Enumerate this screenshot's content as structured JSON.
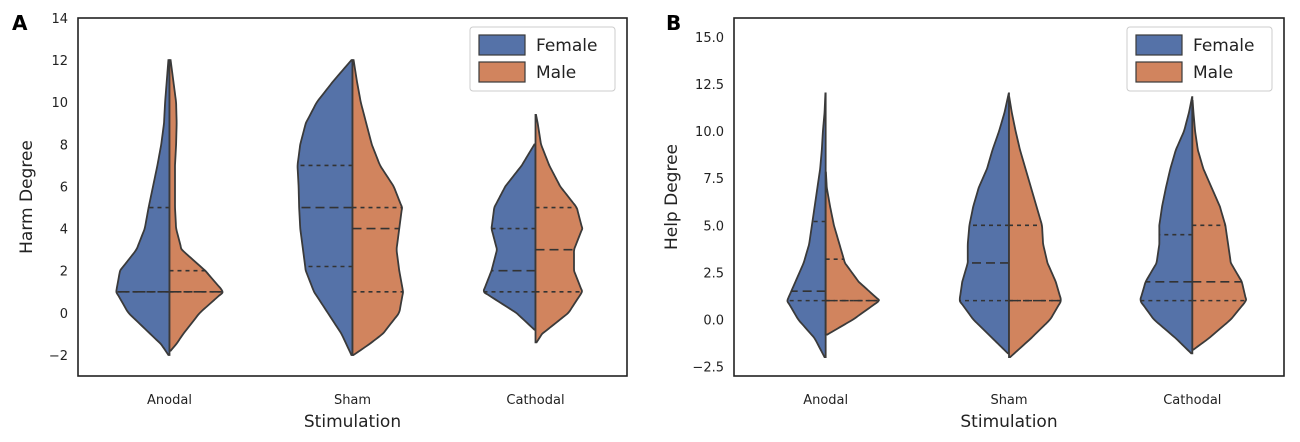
{
  "chart_data": [
    {
      "type": "violin",
      "panel_label": "A",
      "xlabel": "Stimulation",
      "ylabel": "Harm Degree",
      "ylim": [
        -3,
        14
      ],
      "yticks": [
        -2,
        0,
        2,
        4,
        6,
        8,
        10,
        12,
        14
      ],
      "ytick_labels": [
        "−2",
        "0",
        "2",
        "4",
        "6",
        "8",
        "10",
        "12",
        "14"
      ],
      "categories": [
        "Anodal",
        "Sham",
        "Cathodal"
      ],
      "legend": {
        "position": "top-right",
        "entries": [
          "Female",
          "Male"
        ]
      },
      "violins": [
        {
          "category": "Anodal",
          "female": {
            "min": -2,
            "max": 12,
            "quartiles": [
              1,
              1,
              5
            ],
            "profile": [
              [
                -2,
                0.02
              ],
              [
                -1.5,
                0.15
              ],
              [
                -1,
                0.35
              ],
              [
                0,
                0.75
              ],
              [
                1,
                0.97
              ],
              [
                2,
                0.9
              ],
              [
                3,
                0.6
              ],
              [
                4,
                0.45
              ],
              [
                5,
                0.38
              ],
              [
                6,
                0.3
              ],
              [
                7,
                0.22
              ],
              [
                8,
                0.15
              ],
              [
                9,
                0.1
              ],
              [
                10,
                0.08
              ],
              [
                11,
                0.05
              ],
              [
                12,
                0.02
              ]
            ]
          },
          "male": {
            "min": -1.8,
            "max": 12,
            "quartiles": [
              1,
              1,
              2
            ],
            "profile": [
              [
                -1.8,
                0.02
              ],
              [
                -1.5,
                0.12
              ],
              [
                -1,
                0.25
              ],
              [
                0,
                0.55
              ],
              [
                1,
                0.98
              ],
              [
                2,
                0.65
              ],
              [
                3,
                0.22
              ],
              [
                4,
                0.12
              ],
              [
                5,
                0.1
              ],
              [
                6,
                0.1
              ],
              [
                7,
                0.1
              ],
              [
                8,
                0.12
              ],
              [
                9,
                0.13
              ],
              [
                10,
                0.12
              ],
              [
                11,
                0.07
              ],
              [
                12,
                0.02
              ]
            ]
          }
        },
        {
          "category": "Sham",
          "female": {
            "min": -2,
            "max": 12,
            "quartiles": [
              2.2,
              5,
              7
            ],
            "profile": [
              [
                -2,
                0.02
              ],
              [
                -1,
                0.2
              ],
              [
                0,
                0.45
              ],
              [
                1,
                0.7
              ],
              [
                2,
                0.85
              ],
              [
                3,
                0.9
              ],
              [
                4,
                0.95
              ],
              [
                5,
                0.97
              ],
              [
                6,
                0.98
              ],
              [
                7,
                1.0
              ],
              [
                8,
                0.95
              ],
              [
                9,
                0.85
              ],
              [
                10,
                0.65
              ],
              [
                11,
                0.35
              ],
              [
                12,
                0.02
              ]
            ]
          },
          "male": {
            "min": -2,
            "max": 12,
            "quartiles": [
              1,
              4,
              5
            ],
            "profile": [
              [
                -2,
                0.02
              ],
              [
                -1.5,
                0.3
              ],
              [
                -1,
                0.55
              ],
              [
                0,
                0.85
              ],
              [
                1,
                0.92
              ],
              [
                2,
                0.85
              ],
              [
                3,
                0.8
              ],
              [
                4,
                0.85
              ],
              [
                5,
                0.9
              ],
              [
                6,
                0.75
              ],
              [
                7,
                0.5
              ],
              [
                8,
                0.35
              ],
              [
                9,
                0.25
              ],
              [
                10,
                0.15
              ],
              [
                11,
                0.08
              ],
              [
                12,
                0.02
              ]
            ]
          }
        },
        {
          "category": "Cathodal",
          "female": {
            "min": -0.8,
            "max": 8,
            "quartiles": [
              1,
              2,
              4
            ],
            "profile": [
              [
                -0.8,
                0.02
              ],
              [
                0,
                0.35
              ],
              [
                1,
                0.95
              ],
              [
                2,
                0.8
              ],
              [
                3,
                0.7
              ],
              [
                4,
                0.8
              ],
              [
                5,
                0.75
              ],
              [
                6,
                0.55
              ],
              [
                7,
                0.25
              ],
              [
                8,
                0.02
              ]
            ]
          },
          "male": {
            "min": -1.4,
            "max": 9.4,
            "quartiles": [
              1,
              3,
              5
            ],
            "profile": [
              [
                -1.4,
                0.02
              ],
              [
                -1,
                0.12
              ],
              [
                0,
                0.6
              ],
              [
                1,
                0.85
              ],
              [
                2,
                0.7
              ],
              [
                3,
                0.7
              ],
              [
                4,
                0.85
              ],
              [
                5,
                0.75
              ],
              [
                6,
                0.45
              ],
              [
                7,
                0.25
              ],
              [
                8,
                0.1
              ],
              [
                9,
                0.04
              ],
              [
                9.4,
                0.01
              ]
            ]
          }
        }
      ]
    },
    {
      "type": "violin",
      "panel_label": "B",
      "xlabel": "Stimulation",
      "ylabel": "Help Degree",
      "ylim": [
        -3,
        16
      ],
      "yticks": [
        -2.5,
        0,
        2.5,
        5,
        7.5,
        10,
        12.5,
        15
      ],
      "ytick_labels": [
        "−2.5",
        "0.0",
        "2.5",
        "5.0",
        "7.5",
        "10.0",
        "12.5",
        "15.0"
      ],
      "categories": [
        "Anodal",
        "Sham",
        "Cathodal"
      ],
      "legend": {
        "position": "top-right",
        "entries": [
          "Female",
          "Male"
        ]
      },
      "violins": [
        {
          "category": "Anodal",
          "female": {
            "min": -2,
            "max": 12,
            "quartiles": [
              1,
              1.5,
              5.2
            ],
            "profile": [
              [
                -2,
                0.02
              ],
              [
                -1,
                0.2
              ],
              [
                0,
                0.5
              ],
              [
                1,
                0.7
              ],
              [
                2,
                0.55
              ],
              [
                3,
                0.4
              ],
              [
                4,
                0.3
              ],
              [
                5,
                0.25
              ],
              [
                6,
                0.2
              ],
              [
                7,
                0.15
              ],
              [
                8,
                0.1
              ],
              [
                9,
                0.07
              ],
              [
                10,
                0.05
              ],
              [
                11,
                0.02
              ],
              [
                12,
                0.005
              ]
            ]
          },
          "male": {
            "min": -0.8,
            "max": 7.8,
            "quartiles": [
              1,
              1,
              3.2
            ],
            "profile": [
              [
                -0.8,
                0.03
              ],
              [
                0,
                0.5
              ],
              [
                1,
                0.98
              ],
              [
                2,
                0.6
              ],
              [
                3,
                0.35
              ],
              [
                4,
                0.25
              ],
              [
                5,
                0.15
              ],
              [
                6,
                0.08
              ],
              [
                7,
                0.02
              ],
              [
                7.8,
                0.005
              ]
            ]
          }
        },
        {
          "category": "Sham",
          "female": {
            "min": -1.8,
            "max": 12,
            "quartiles": [
              1,
              3,
              5
            ],
            "profile": [
              [
                -1.8,
                0.02
              ],
              [
                -1,
                0.3
              ],
              [
                0,
                0.65
              ],
              [
                1,
                0.9
              ],
              [
                2,
                0.85
              ],
              [
                3,
                0.75
              ],
              [
                4,
                0.75
              ],
              [
                5,
                0.72
              ],
              [
                6,
                0.65
              ],
              [
                7,
                0.55
              ],
              [
                8,
                0.4
              ],
              [
                9,
                0.3
              ],
              [
                10,
                0.18
              ],
              [
                11,
                0.08
              ],
              [
                12,
                0.005
              ]
            ]
          },
          "male": {
            "min": -2,
            "max": 11.8,
            "quartiles": [
              1,
              1,
              5
            ],
            "profile": [
              [
                -2,
                0.02
              ],
              [
                -1,
                0.4
              ],
              [
                0,
                0.75
              ],
              [
                1,
                0.95
              ],
              [
                2,
                0.85
              ],
              [
                3,
                0.7
              ],
              [
                4,
                0.62
              ],
              [
                5,
                0.6
              ],
              [
                6,
                0.5
              ],
              [
                7,
                0.4
              ],
              [
                8,
                0.3
              ],
              [
                9,
                0.2
              ],
              [
                10,
                0.12
              ],
              [
                11,
                0.05
              ],
              [
                11.8,
                0.005
              ]
            ]
          }
        },
        {
          "category": "Cathodal",
          "female": {
            "min": -1.8,
            "max": 11.8,
            "quartiles": [
              1,
              2,
              4.5
            ],
            "profile": [
              [
                -1.8,
                0.02
              ],
              [
                -1,
                0.3
              ],
              [
                0,
                0.7
              ],
              [
                1,
                0.95
              ],
              [
                2,
                0.85
              ],
              [
                3,
                0.65
              ],
              [
                4,
                0.6
              ],
              [
                5,
                0.6
              ],
              [
                6,
                0.55
              ],
              [
                7,
                0.48
              ],
              [
                8,
                0.4
              ],
              [
                9,
                0.3
              ],
              [
                10,
                0.15
              ],
              [
                11,
                0.06
              ],
              [
                11.8,
                0.005
              ]
            ]
          },
          "male": {
            "min": -1.6,
            "max": 11.6,
            "quartiles": [
              1,
              2,
              5
            ],
            "profile": [
              [
                -1.6,
                0.02
              ],
              [
                -1,
                0.3
              ],
              [
                0,
                0.7
              ],
              [
                1,
                0.98
              ],
              [
                2,
                0.9
              ],
              [
                3,
                0.7
              ],
              [
                4,
                0.65
              ],
              [
                5,
                0.6
              ],
              [
                6,
                0.5
              ],
              [
                7,
                0.35
              ],
              [
                8,
                0.2
              ],
              [
                9,
                0.1
              ],
              [
                10,
                0.05
              ],
              [
                11,
                0.02
              ],
              [
                11.6,
                0.005
              ]
            ]
          }
        }
      ]
    }
  ],
  "colors": {
    "female": "#5572a8",
    "male": "#d1845e",
    "edge": "#3a3a3a",
    "frame": "#222222"
  }
}
